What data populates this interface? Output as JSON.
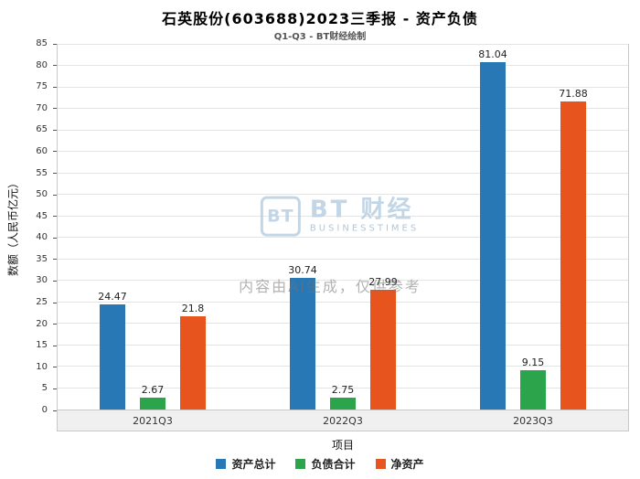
{
  "watermark": {
    "icon_text": "BT",
    "brand": "BT 财经",
    "brand_sub": "BUSINESSTIMES",
    "disclaimer": "内容由AI生成，仅供参考"
  },
  "chart_data": {
    "type": "bar",
    "title": "石英股份(603688)2023三季报 - 资产负债",
    "subtitle": "Q1-Q3 - BT财经绘制",
    "categories": [
      "2021Q3",
      "2022Q3",
      "2023Q3"
    ],
    "series": [
      {
        "name": "资产总计",
        "color": "#2878b5",
        "values": [
          24.47,
          30.74,
          81.04
        ]
      },
      {
        "name": "负债合计",
        "color": "#2ca44b",
        "values": [
          2.67,
          2.75,
          9.15
        ]
      },
      {
        "name": "净资产",
        "color": "#e8541e",
        "values": [
          21.8,
          27.99,
          71.88
        ]
      }
    ],
    "xlabel": "项目",
    "ylabel": "数额（人民币亿元）",
    "ylim": [
      0,
      85
    ],
    "ytick_step": 5,
    "grid": true,
    "legend_position": "bottom"
  }
}
